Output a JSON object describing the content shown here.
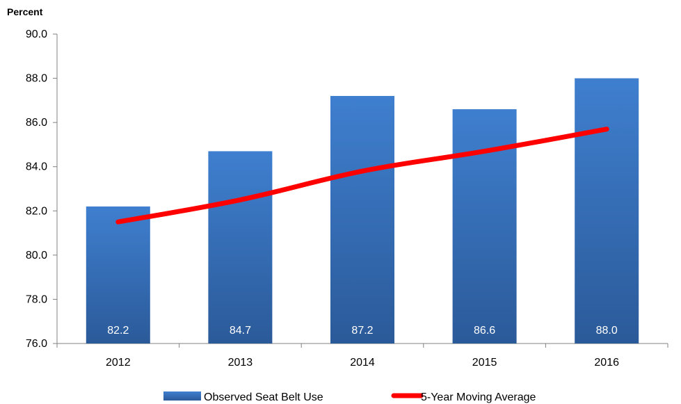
{
  "chart_data": {
    "type": "bar",
    "ylabel": "Percent",
    "ylim": [
      76.0,
      90.0
    ],
    "ytick_step": 2.0,
    "ytick_labels": [
      "76.0",
      "78.0",
      "80.0",
      "82.0",
      "84.0",
      "86.0",
      "88.0",
      "90.0"
    ],
    "categories": [
      "2012",
      "2013",
      "2014",
      "2015",
      "2016"
    ],
    "series": [
      {
        "name": "Observed Seat Belt Use",
        "type": "bar",
        "color": "#3c78c8",
        "values": [
          82.2,
          84.7,
          87.2,
          86.6,
          88.0
        ],
        "labels": [
          "82.2",
          "84.7",
          "87.2",
          "86.6",
          "88.0"
        ]
      },
      {
        "name": "5-Year Moving Average",
        "type": "line",
        "color": "#ff0000",
        "values": [
          81.5,
          82.5,
          83.8,
          84.7,
          85.7
        ]
      }
    ],
    "grid": false,
    "legend_position": "bottom"
  }
}
